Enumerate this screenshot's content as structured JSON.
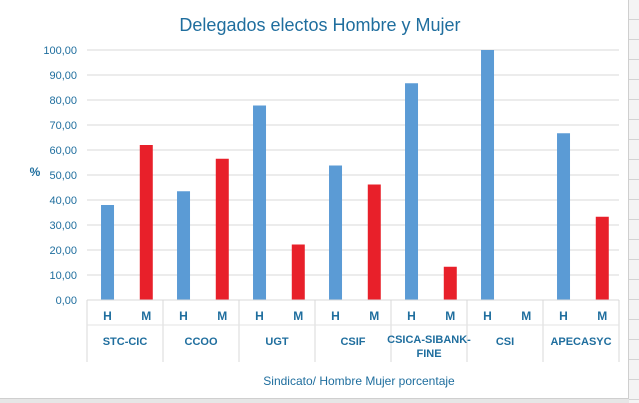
{
  "chart_data": {
    "type": "bar",
    "title": "Delegados electos Hombre y Mujer",
    "ylabel": "%",
    "xlabel": "Sindicato/ Hombre Mujer porcentaje",
    "ylim": [
      0,
      100
    ],
    "yticks": [
      "0,00",
      "10,00",
      "20,00",
      "30,00",
      "40,00",
      "50,00",
      "60,00",
      "70,00",
      "80,00",
      "90,00",
      "100,00"
    ],
    "categories": [
      "STC-CIC",
      "CCOO",
      "UGT",
      "CSIF",
      "CSICA-SIBANK-FINE",
      "CSI",
      "APECASYC"
    ],
    "category_labels": [
      [
        "STC-CIC"
      ],
      [
        "CCOO"
      ],
      [
        "UGT"
      ],
      [
        "CSIF"
      ],
      [
        "CSICA-SIBANK-",
        "FINE"
      ],
      [
        "CSI"
      ],
      [
        "APECASYC"
      ]
    ],
    "subcategories": [
      "H",
      "M"
    ],
    "values": [
      [
        38,
        62
      ],
      [
        43.5,
        56.5
      ],
      [
        77.8,
        22.2
      ],
      [
        53.8,
        46.2
      ],
      [
        86.7,
        13.3
      ],
      [
        100,
        0
      ],
      [
        66.7,
        33.3
      ]
    ],
    "colors": {
      "H": "#5b9bd5",
      "M": "#e8202a"
    },
    "grid": true,
    "legend": "none"
  }
}
